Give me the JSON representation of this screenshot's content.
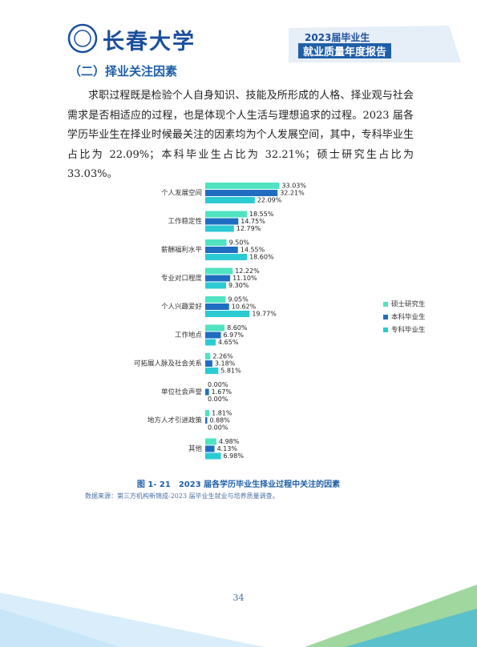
{
  "header": {
    "school": "长春大学",
    "report_year": "2023届毕业生",
    "report_title": "就业质量年度报告"
  },
  "section_title": "（二）择业关注因素",
  "paragraph": "求职过程既是检验个人自身知识、技能及所形成的人格、择业观与社会需求是否相适应的过程，也是体现个人生活与理想追求的过程。2023 届各学历毕业生在择业时候最关注的因素均为个人发展空间，其中，专科毕业生占比为 22.09%；本科毕业生占比为 32.21%；硕士研究生占比为 33.03%。",
  "chart_data": {
    "type": "hbar",
    "categories": [
      "个人发展空间",
      "工作稳定性",
      "薪酬福利水平",
      "专业对口程度",
      "个人兴趣爱好",
      "工作地点",
      "可拓展人脉及社会关系",
      "单位社会声誉",
      "地方人才引进政策",
      "其他"
    ],
    "series": [
      {
        "name": "硕士研究生",
        "color": "#4fe3c1",
        "values": [
          33.03,
          18.55,
          9.5,
          12.22,
          9.05,
          8.6,
          2.26,
          0.0,
          1.81,
          4.98
        ],
        "value_labels": [
          "33.03%",
          "18.55%",
          "9.50%",
          "12.22%",
          "9.05%",
          "8.60%",
          "2.26%",
          "0.00%",
          "1.81%",
          "4.98%"
        ]
      },
      {
        "name": "本科毕业生",
        "color": "#1f6dc1",
        "values": [
          32.21,
          14.75,
          14.55,
          11.1,
          10.62,
          6.97,
          3.18,
          1.67,
          0.88,
          4.13
        ],
        "value_labels": [
          "32.21%",
          "14.75%",
          "14.55%",
          "11.10%",
          "10.62%",
          "6.97%",
          "3.18%",
          "1.67%",
          "0.88%",
          "4.13%"
        ]
      },
      {
        "name": "专科毕业生",
        "color": "#2ccbd4",
        "values": [
          22.09,
          12.79,
          18.6,
          9.3,
          19.77,
          4.65,
          5.81,
          0.0,
          0.0,
          6.98
        ],
        "value_labels": [
          "22.09%",
          "12.79%",
          "18.60%",
          "9.30%",
          "19.77%",
          "4.65%",
          "5.81%",
          "0.00%",
          "0.00%",
          "6.98%"
        ]
      }
    ],
    "legend": "right"
  },
  "caption": "图 1- 21　2023 届各学历毕业生择业过程中关注的因素",
  "source": "数据来源：第三方机构新锦成-2023 届毕业生就业与培养质量调查。",
  "page_number": "34"
}
